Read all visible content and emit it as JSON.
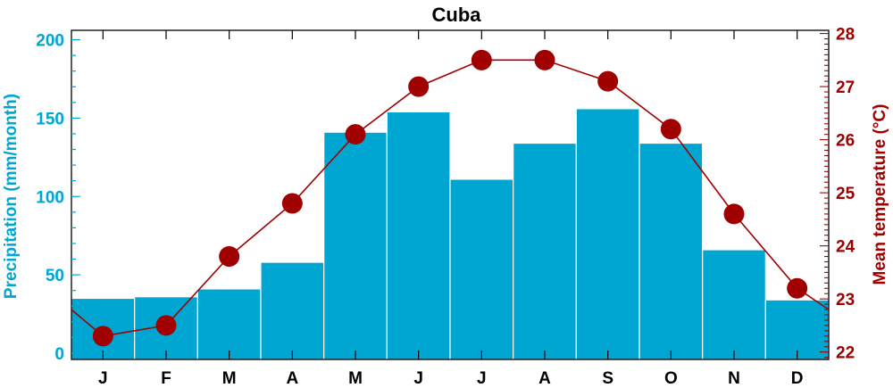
{
  "chart_data": {
    "type": "bar",
    "title": "Cuba",
    "categories": [
      "J",
      "F",
      "M",
      "A",
      "M",
      "J",
      "J",
      "A",
      "S",
      "O",
      "N",
      "D"
    ],
    "series": [
      {
        "type": "bar",
        "axis": "left",
        "color": "#00a6d2",
        "values": [
          35,
          36,
          41,
          58,
          141,
          154,
          111,
          134,
          156,
          134,
          66,
          34
        ]
      },
      {
        "type": "line",
        "axis": "right",
        "color": "#a00000",
        "values": [
          22.3,
          22.5,
          23.8,
          24.8,
          26.1,
          27.0,
          27.5,
          27.5,
          27.1,
          26.2,
          24.6,
          23.2
        ],
        "edge_values": [
          22.8,
          22.8
        ]
      }
    ],
    "ylabel": "Precipitation (mm/month)",
    "ylabel_right": "Mean temperature (°C)",
    "ylim": [
      -4,
      206
    ],
    "ylim_right": [
      21.86,
      28.06
    ],
    "yticks": [
      0,
      50,
      100,
      150,
      200
    ],
    "yticks_right": [
      22,
      23,
      24,
      25,
      26,
      27,
      28
    ],
    "grid": false,
    "legend": "none",
    "colors": {
      "precipitation": "#00a6d2",
      "temperature": "#a00000",
      "axis": "#000000"
    }
  }
}
